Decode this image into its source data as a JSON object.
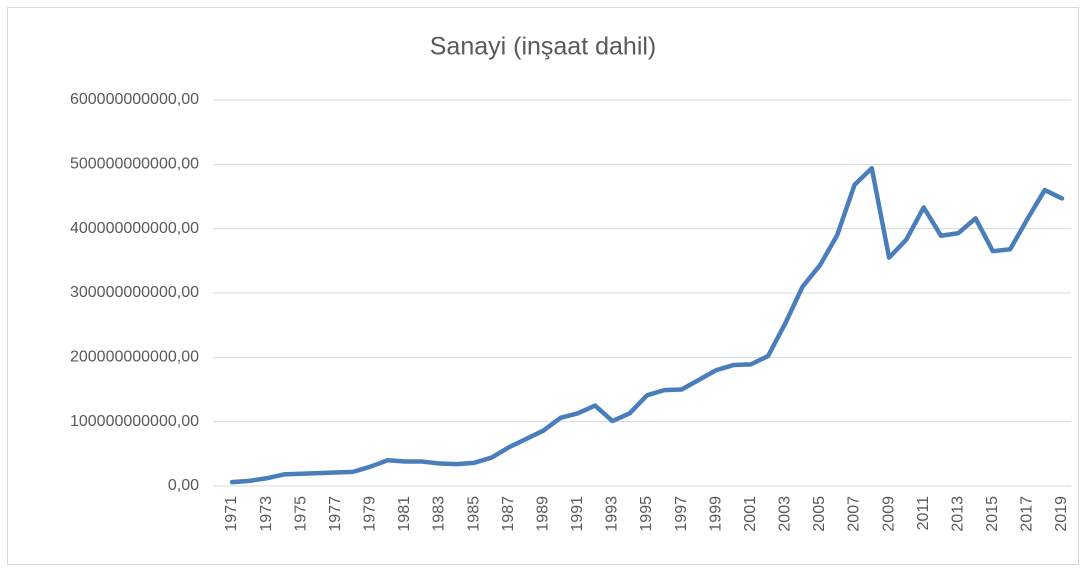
{
  "chart_data": {
    "type": "line",
    "title": "Sanayi (inşaat dahil)",
    "categories": [
      "1971",
      null,
      "1973",
      null,
      "1975",
      null,
      "1977",
      null,
      "1979",
      null,
      "1981",
      null,
      "1983",
      null,
      "1985",
      null,
      "1987",
      null,
      "1989",
      null,
      "1991",
      null,
      "1993",
      null,
      "1995",
      null,
      "1997",
      null,
      "1999",
      null,
      "2001",
      null,
      "2003",
      null,
      "2005",
      null,
      "2007",
      null,
      "2009",
      null,
      "2011",
      null,
      "2013",
      null,
      "2015",
      null,
      "2017",
      null,
      "2019"
    ],
    "values": [
      6000000000,
      8000000000,
      12000000000,
      18000000000,
      19000000000,
      20000000000,
      21000000000,
      22000000000,
      30000000000,
      40000000000,
      38000000000,
      38000000000,
      35000000000,
      34000000000,
      36000000000,
      44000000000,
      60000000000,
      73000000000,
      86000000000,
      106000000000,
      113000000000,
      125000000000,
      101000000000,
      113000000000,
      141000000000,
      149000000000,
      150000000000,
      165000000000,
      180000000000,
      188000000000,
      189000000000,
      202000000000,
      253000000000,
      310000000000,
      343000000000,
      390000000000,
      468000000000,
      494000000000,
      355000000000,
      383000000000,
      433000000000,
      389000000000,
      393000000000,
      416000000000,
      365000000000,
      368000000000,
      415000000000,
      460000000000,
      447000000000
    ],
    "color": "#4a7ebb",
    "ylim": [
      0,
      600000000000
    ],
    "yticks": [
      {
        "value": 0,
        "label": "0,00"
      },
      {
        "value": 100000000000,
        "label": "100000000000,00"
      },
      {
        "value": 200000000000,
        "label": "200000000000,00"
      },
      {
        "value": 300000000000,
        "label": "300000000000,00"
      },
      {
        "value": 400000000000,
        "label": "400000000000,00"
      },
      {
        "value": 500000000000,
        "label": "500000000000,00"
      },
      {
        "value": 600000000000,
        "label": "600000000000,00"
      }
    ],
    "grid": true
  }
}
